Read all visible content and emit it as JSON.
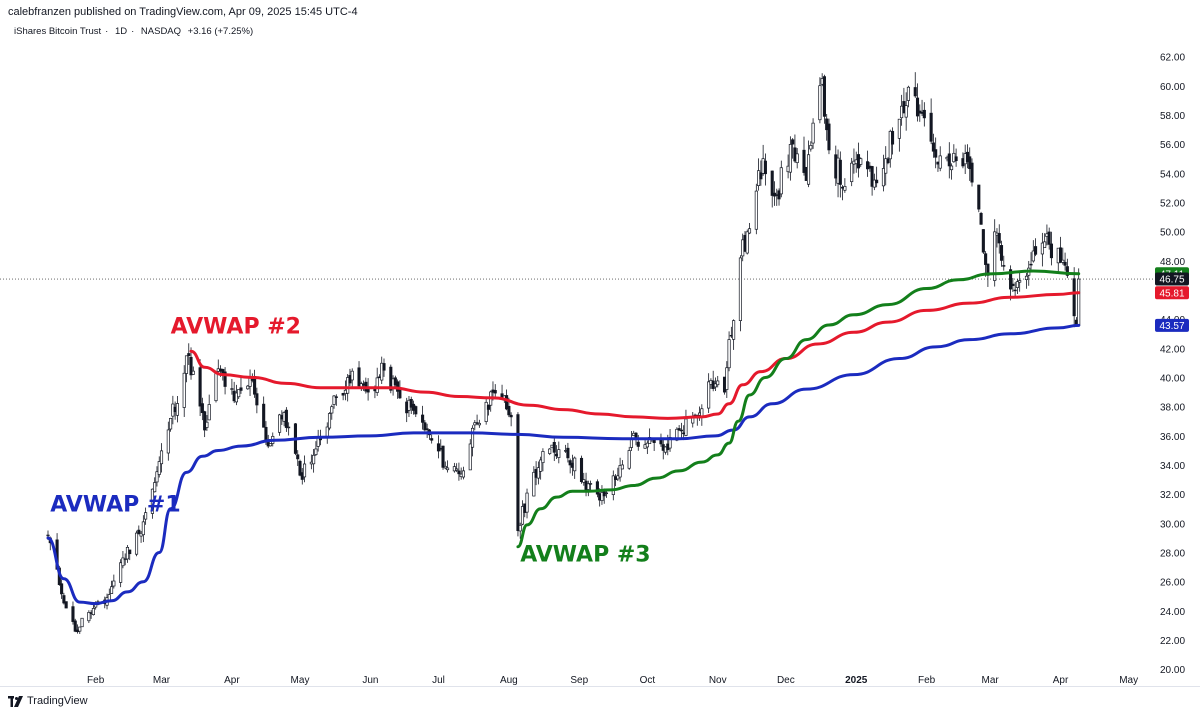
{
  "header": {
    "published": "calebfranzen published on TradingView.com, Apr 09, 2025 15:45 UTC-4",
    "symbol": "iShares Bitcoin Trust",
    "interval": "1D",
    "exchange": "NASDAQ",
    "change": "+3.16 (+7.25%)"
  },
  "footer": {
    "brand": "TradingView"
  },
  "colors": {
    "candle": "#131722",
    "avwap1": "#1b2bbf",
    "avwap2": "#e5192c",
    "avwap3": "#137f1b",
    "last_price_bg": "#131722"
  },
  "chart_data": {
    "type": "candlestick",
    "y_axis": {
      "ticks": [
        20.0,
        22.0,
        24.0,
        26.0,
        28.0,
        30.0,
        32.0,
        34.0,
        36.0,
        38.0,
        40.0,
        42.0,
        44.0,
        46.0,
        48.0,
        50.0,
        52.0,
        54.0,
        56.0,
        58.0,
        60.0,
        62.0
      ],
      "range": [
        19.4,
        63.0
      ]
    },
    "x_axis": {
      "labels": [
        "Feb",
        "Mar",
        "Apr",
        "May",
        "Jun",
        "Jul",
        "Aug",
        "Sep",
        "Oct",
        "Nov",
        "Dec",
        "2025",
        "Feb",
        "Mar",
        "Apr",
        "May"
      ],
      "range": [
        "2024-01-11",
        "2025-05-06"
      ]
    },
    "annotations": [
      {
        "text": "AVWAP #1",
        "color": "#1b2bbf",
        "date": "2024-01-12",
        "value": 30.8
      },
      {
        "text": "AVWAP #2",
        "color": "#e5192c",
        "date": "2024-03-05",
        "value": 43.0
      },
      {
        "text": "AVWAP #3",
        "color": "#137f1b",
        "date": "2024-08-06",
        "value": 27.4
      }
    ],
    "price_labels": [
      {
        "value": 47.11,
        "text": "47.11",
        "color": "#137f1b"
      },
      {
        "value": 46.75,
        "text": "46.75",
        "color": "#131722"
      },
      {
        "value": 45.81,
        "text": "45.81",
        "color": "#e5192c"
      },
      {
        "value": 43.57,
        "text": "43.57",
        "color": "#1b2bbf"
      }
    ],
    "last_price": 46.75,
    "series": [
      {
        "name": "AVWAP #1",
        "color": "#1b2bbf",
        "points": [
          [
            "2024-01-11",
            29.0
          ],
          [
            "2024-01-18",
            26.2
          ],
          [
            "2024-01-25",
            24.6
          ],
          [
            "2024-02-01",
            24.5
          ],
          [
            "2024-02-08",
            24.7
          ],
          [
            "2024-02-15",
            25.3
          ],
          [
            "2024-02-22",
            26.0
          ],
          [
            "2024-02-29",
            28.0
          ],
          [
            "2024-03-05",
            31.0
          ],
          [
            "2024-03-12",
            33.5
          ],
          [
            "2024-03-19",
            34.6
          ],
          [
            "2024-03-26",
            35.0
          ],
          [
            "2024-04-05",
            35.3
          ],
          [
            "2024-04-20",
            35.7
          ],
          [
            "2024-05-10",
            35.9
          ],
          [
            "2024-06-01",
            36.0
          ],
          [
            "2024-06-20",
            36.2
          ],
          [
            "2024-07-15",
            36.2
          ],
          [
            "2024-08-05",
            36.1
          ],
          [
            "2024-08-25",
            35.9
          ],
          [
            "2024-09-20",
            35.8
          ],
          [
            "2024-10-15",
            35.8
          ],
          [
            "2024-10-31",
            36.0
          ],
          [
            "2024-11-08",
            36.4
          ],
          [
            "2024-11-15",
            37.3
          ],
          [
            "2024-11-25",
            38.2
          ],
          [
            "2024-12-10",
            39.2
          ],
          [
            "2024-12-31",
            40.2
          ],
          [
            "2025-01-20",
            41.3
          ],
          [
            "2025-02-05",
            42.1
          ],
          [
            "2025-02-20",
            42.6
          ],
          [
            "2025-03-10",
            43.0
          ],
          [
            "2025-03-31",
            43.4
          ],
          [
            "2025-04-09",
            43.57
          ]
        ]
      },
      {
        "name": "AVWAP #2",
        "color": "#e5192c",
        "points": [
          [
            "2024-03-14",
            41.8
          ],
          [
            "2024-03-20",
            40.7
          ],
          [
            "2024-03-28",
            40.2
          ],
          [
            "2024-04-10",
            40.0
          ],
          [
            "2024-04-25",
            39.6
          ],
          [
            "2024-05-10",
            39.3
          ],
          [
            "2024-05-25",
            39.3
          ],
          [
            "2024-06-10",
            39.3
          ],
          [
            "2024-06-25",
            39.0
          ],
          [
            "2024-07-10",
            38.7
          ],
          [
            "2024-07-25",
            38.6
          ],
          [
            "2024-08-10",
            38.1
          ],
          [
            "2024-08-25",
            37.8
          ],
          [
            "2024-09-10",
            37.5
          ],
          [
            "2024-09-25",
            37.3
          ],
          [
            "2024-10-10",
            37.2
          ],
          [
            "2024-10-25",
            37.3
          ],
          [
            "2024-11-01",
            37.5
          ],
          [
            "2024-11-06",
            38.2
          ],
          [
            "2024-11-12",
            39.5
          ],
          [
            "2024-11-20",
            40.4
          ],
          [
            "2024-12-01",
            41.3
          ],
          [
            "2024-12-15",
            42.3
          ],
          [
            "2024-12-31",
            43.1
          ],
          [
            "2025-01-15",
            43.8
          ],
          [
            "2025-02-01",
            44.6
          ],
          [
            "2025-02-20",
            45.1
          ],
          [
            "2025-03-10",
            45.5
          ],
          [
            "2025-03-31",
            45.7
          ],
          [
            "2025-04-09",
            45.81
          ]
        ]
      },
      {
        "name": "AVWAP #3",
        "color": "#137f1b",
        "points": [
          [
            "2024-08-05",
            28.4
          ],
          [
            "2024-08-09",
            29.9
          ],
          [
            "2024-08-15",
            31.0
          ],
          [
            "2024-08-22",
            31.8
          ],
          [
            "2024-08-29",
            32.2
          ],
          [
            "2024-09-05",
            32.2
          ],
          [
            "2024-09-15",
            32.3
          ],
          [
            "2024-09-25",
            32.6
          ],
          [
            "2024-10-05",
            33.1
          ],
          [
            "2024-10-15",
            33.6
          ],
          [
            "2024-10-25",
            34.2
          ],
          [
            "2024-11-01",
            34.7
          ],
          [
            "2024-11-06",
            35.5
          ],
          [
            "2024-11-10",
            37.0
          ],
          [
            "2024-11-15",
            38.8
          ],
          [
            "2024-11-22",
            40.0
          ],
          [
            "2024-12-01",
            41.3
          ],
          [
            "2024-12-10",
            42.6
          ],
          [
            "2024-12-20",
            43.6
          ],
          [
            "2024-12-31",
            44.3
          ],
          [
            "2025-01-15",
            45.0
          ],
          [
            "2025-02-01",
            46.1
          ],
          [
            "2025-02-15",
            46.7
          ],
          [
            "2025-03-01",
            47.1
          ],
          [
            "2025-03-20",
            47.3
          ],
          [
            "2025-04-09",
            47.11
          ]
        ]
      }
    ],
    "candle_anchors": [
      [
        "2024-01-11",
        29.2
      ],
      [
        "2024-01-16",
        25.8
      ],
      [
        "2024-01-23",
        22.6
      ],
      [
        "2024-01-29",
        23.9
      ],
      [
        "2024-02-05",
        24.5
      ],
      [
        "2024-02-12",
        27.3
      ],
      [
        "2024-02-20",
        29.3
      ],
      [
        "2024-02-27",
        32.8
      ],
      [
        "2024-03-05",
        37.2
      ],
      [
        "2024-03-13",
        41.5
      ],
      [
        "2024-03-20",
        36.4
      ],
      [
        "2024-03-26",
        40.6
      ],
      [
        "2024-04-02",
        38.4
      ],
      [
        "2024-04-10",
        39.8
      ],
      [
        "2024-04-17",
        35.3
      ],
      [
        "2024-04-24",
        37.6
      ],
      [
        "2024-05-01",
        33.3
      ],
      [
        "2024-05-08",
        35.1
      ],
      [
        "2024-05-15",
        38.0
      ],
      [
        "2024-05-22",
        40.0
      ],
      [
        "2024-05-31",
        39.0
      ],
      [
        "2024-06-07",
        40.5
      ],
      [
        "2024-06-14",
        38.6
      ],
      [
        "2024-06-21",
        37.5
      ],
      [
        "2024-06-28",
        35.7
      ],
      [
        "2024-07-05",
        33.8
      ],
      [
        "2024-07-12",
        33.6
      ],
      [
        "2024-07-17",
        36.9
      ],
      [
        "2024-07-22",
        38.3
      ],
      [
        "2024-07-29",
        38.6
      ],
      [
        "2024-08-02",
        37.3
      ],
      [
        "2024-08-05",
        29.5
      ],
      [
        "2024-08-12",
        33.5
      ],
      [
        "2024-08-19",
        35.1
      ],
      [
        "2024-08-26",
        35.0
      ],
      [
        "2024-09-03",
        33.0
      ],
      [
        "2024-09-10",
        31.6
      ],
      [
        "2024-09-17",
        33.0
      ],
      [
        "2024-09-24",
        35.8
      ],
      [
        "2024-10-01",
        35.5
      ],
      [
        "2024-10-08",
        35.0
      ],
      [
        "2024-10-15",
        36.4
      ],
      [
        "2024-10-22",
        37.4
      ],
      [
        "2024-10-29",
        39.8
      ],
      [
        "2024-11-04",
        39.0
      ],
      [
        "2024-11-06",
        42.6
      ],
      [
        "2024-11-08",
        43.9
      ],
      [
        "2024-11-11",
        48.2
      ],
      [
        "2024-11-15",
        50.2
      ],
      [
        "2024-11-21",
        55.0
      ],
      [
        "2024-11-27",
        52.5
      ],
      [
        "2024-12-04",
        56.0
      ],
      [
        "2024-12-10",
        53.5
      ],
      [
        "2024-12-17",
        60.5
      ],
      [
        "2024-12-20",
        55.6
      ],
      [
        "2024-12-27",
        53.1
      ],
      [
        "2025-01-03",
        55.0
      ],
      [
        "2025-01-08",
        53.1
      ],
      [
        "2025-01-14",
        55.0
      ],
      [
        "2025-01-21",
        58.6
      ],
      [
        "2025-01-24",
        59.9
      ],
      [
        "2025-01-31",
        57.8
      ],
      [
        "2025-02-05",
        55.1
      ],
      [
        "2025-02-12",
        54.5
      ],
      [
        "2025-02-19",
        54.8
      ],
      [
        "2025-02-25",
        50.5
      ],
      [
        "2025-02-28",
        47.0
      ],
      [
        "2025-03-04",
        49.9
      ],
      [
        "2025-03-11",
        46.3
      ],
      [
        "2025-03-18",
        47.5
      ],
      [
        "2025-03-25",
        49.3
      ],
      [
        "2025-04-01",
        47.9
      ],
      [
        "2025-04-04",
        47.0
      ],
      [
        "2025-04-08",
        43.6
      ],
      [
        "2025-04-09",
        46.75
      ]
    ]
  }
}
